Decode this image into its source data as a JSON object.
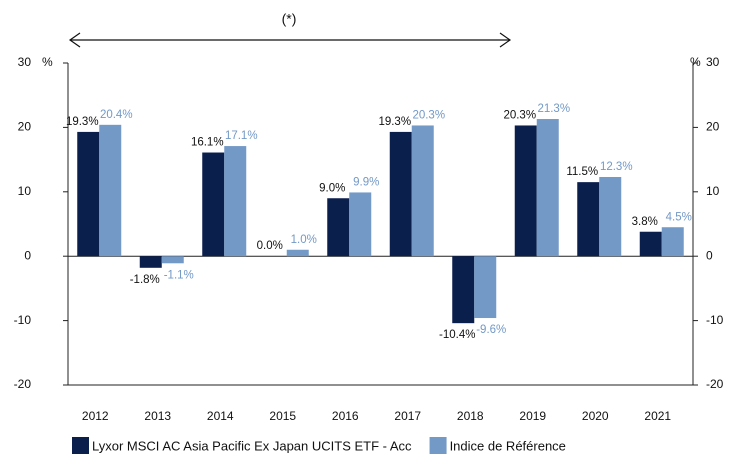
{
  "chart_data": {
    "type": "bar",
    "annotation": "(*)",
    "y_unit": "%",
    "categories": [
      "2012",
      "2013",
      "2014",
      "2015",
      "2016",
      "2017",
      "2018",
      "2019",
      "2020",
      "2021"
    ],
    "series": [
      {
        "name": "Lyxor MSCI AC Asia Pacific Ex Japan UCITS ETF - Acc",
        "color": "#0b1f4d",
        "values": [
          19.3,
          -1.8,
          16.1,
          0.0,
          9.0,
          19.3,
          -10.4,
          20.3,
          11.5,
          3.8
        ],
        "value_labels": [
          "19.3%",
          "-1.8%",
          "16.1%",
          "0.0%",
          "9.0%",
          "19.3%",
          "-10.4%",
          "20.3%",
          "11.5%",
          "3.8%"
        ]
      },
      {
        "name": "Indice de Référence",
        "color": "#7399c6",
        "values": [
          20.4,
          -1.1,
          17.1,
          1.0,
          9.9,
          20.3,
          -9.6,
          21.3,
          12.3,
          4.5
        ],
        "value_labels": [
          "20.4%",
          "-1.1%",
          "17.1%",
          "1.0%",
          "9.9%",
          "20.3%",
          "-9.6%",
          "21.3%",
          "12.3%",
          "4.5%"
        ]
      }
    ],
    "ylim": [
      -20,
      30
    ],
    "yticks": [
      -20,
      -10,
      0,
      10,
      20,
      30
    ],
    "grid": false
  }
}
